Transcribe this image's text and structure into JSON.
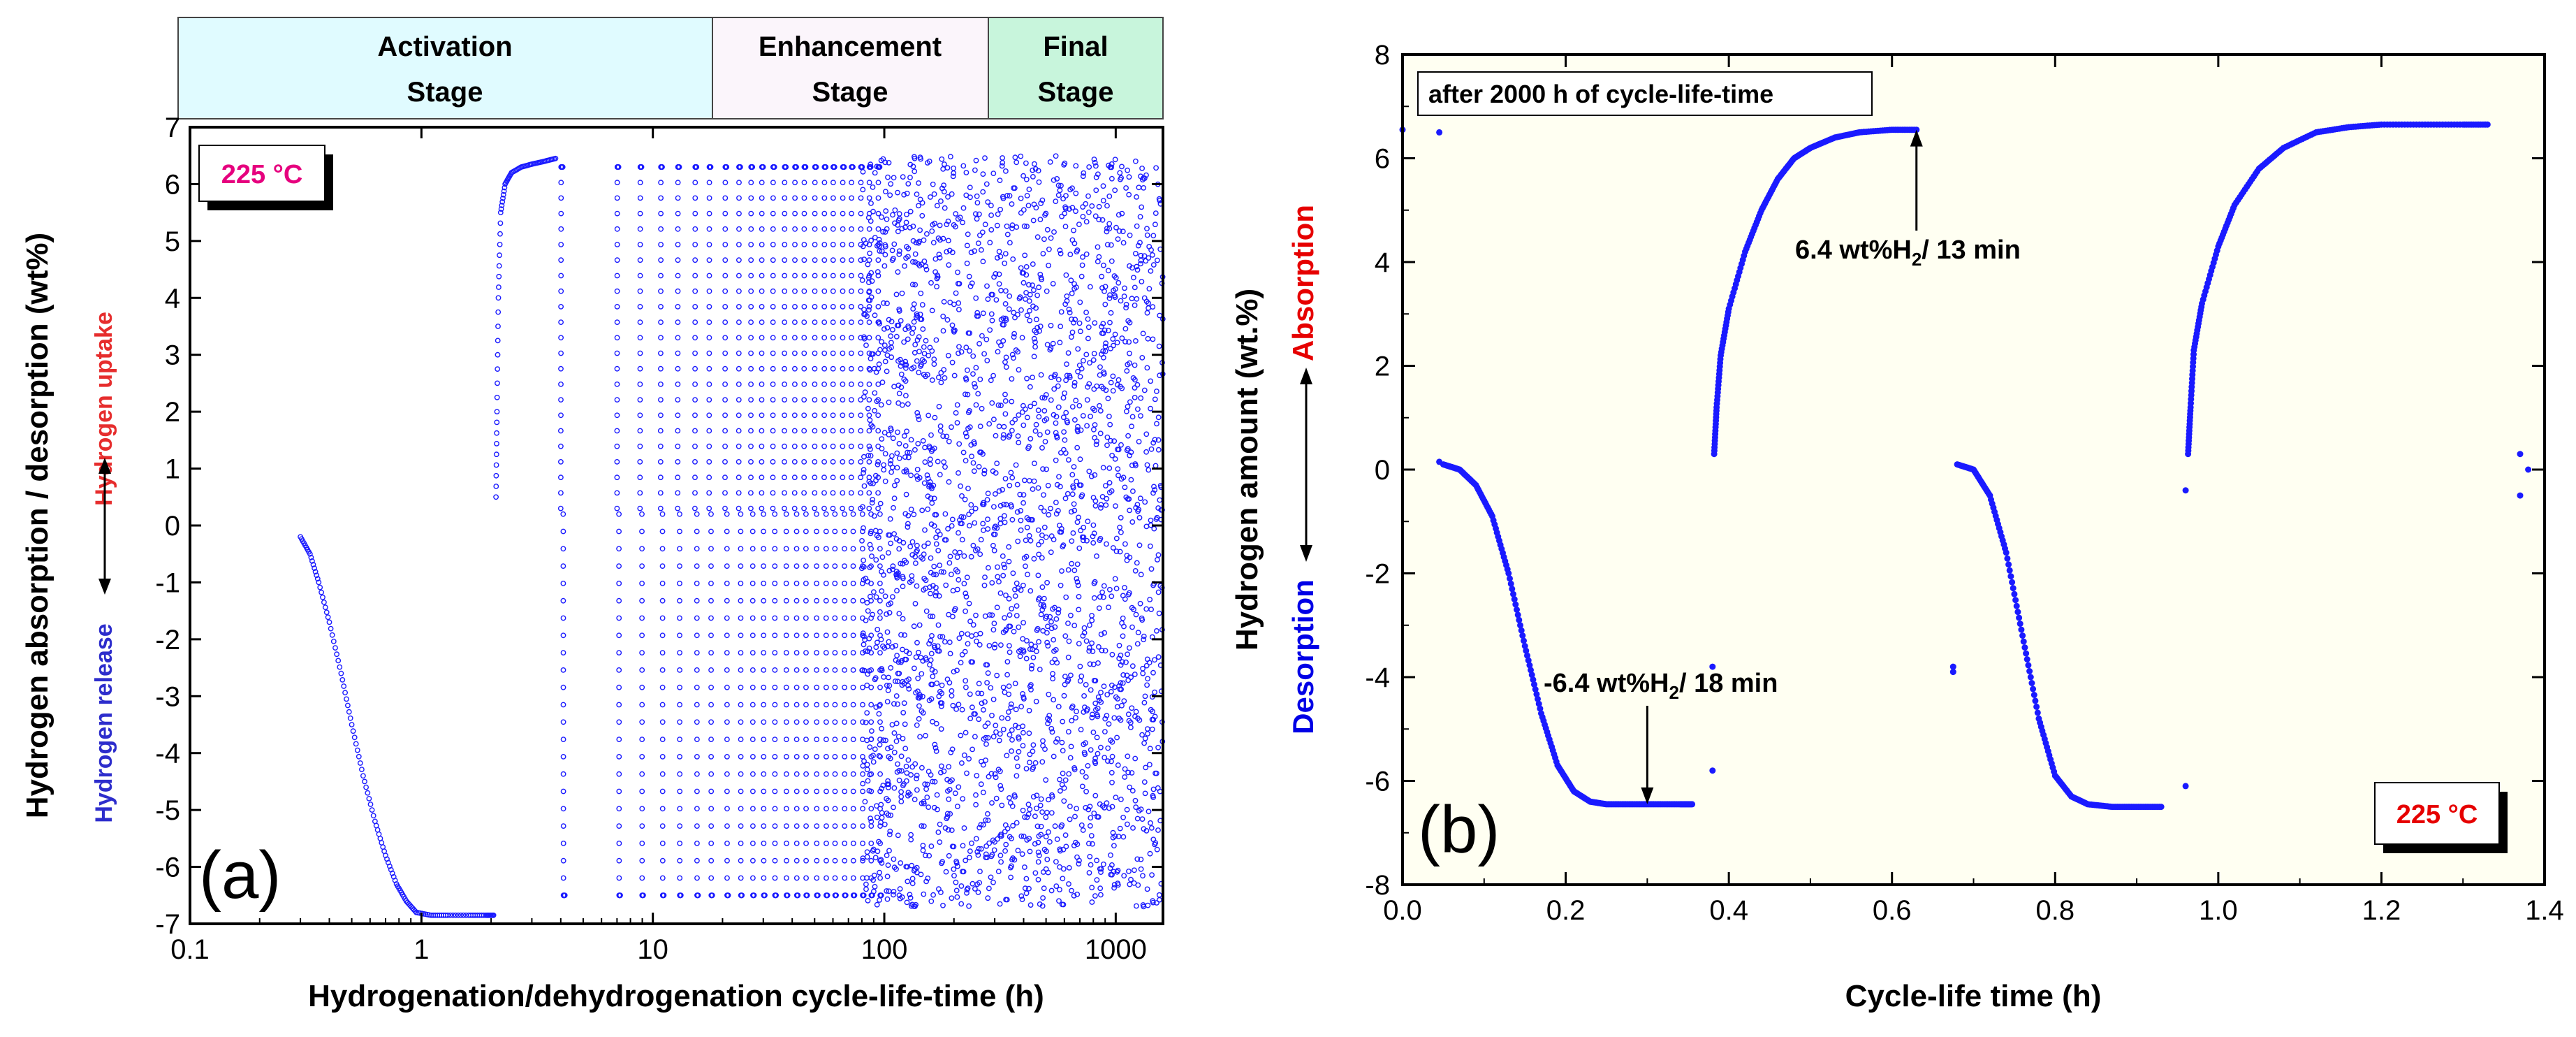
{
  "colors": {
    "series": "#1a1aff",
    "activation_bg": "#e0fbff",
    "enhancement_bg": "#fbf5fb",
    "final_bg": "#c8f5dc",
    "plot_b_bg": "#fffff2",
    "temp_a": "#e6007e",
    "temp_b": "#e60000",
    "absorption_label": "#e60000",
    "desorption_label": "#0000e6",
    "uptake_label": "#e62d2d",
    "release_label": "#2d2dcc"
  },
  "chart_data": [
    {
      "id": "a",
      "type": "scatter",
      "panel_label": "(a)",
      "xlabel": "Hydrogenation/dehydrogenation cycle-life-time (h)",
      "ylabel": "Hydrogen absorption / desorption (wt%)",
      "xscale": "log",
      "xlim": [
        0.1,
        1600
      ],
      "ylim": [
        -7,
        7
      ],
      "xticks": [
        0.1,
        1,
        10,
        100,
        1000
      ],
      "xtick_labels": [
        "0.1",
        "1",
        "10",
        "100",
        "1000"
      ],
      "yticks": [
        -7,
        -6,
        -5,
        -4,
        -3,
        -2,
        -1,
        0,
        1,
        2,
        3,
        4,
        5,
        6,
        7
      ],
      "ytick_labels": [
        "-7",
        "-6",
        "-5",
        "-4",
        "-3",
        "-2",
        "-1",
        "0",
        "1",
        "2",
        "3",
        "4",
        "5",
        "6",
        "7"
      ],
      "temperature_label": "225 °C",
      "side_labels": {
        "uptake": "Hydrogen uptake",
        "release": "Hydrogen release"
      },
      "stages": [
        {
          "name": "Activation",
          "line2": "Stage",
          "x_start": 0.1,
          "x_end": 18
        },
        {
          "name": "Enhancement",
          "line2": "Stage",
          "x_start": 18,
          "x_end": 300
        },
        {
          "name": "Final",
          "line2": "Stage",
          "x_start": 300,
          "x_end": 1600
        }
      ],
      "series": [
        {
          "name": "first desorption",
          "x": [
            0.3,
            0.33,
            0.36,
            0.4,
            0.45,
            0.5,
            0.56,
            0.63,
            0.7,
            0.78,
            0.86,
            0.95,
            1.1,
            1.3,
            1.6,
            1.9,
            2.05
          ],
          "y": [
            -0.2,
            -0.5,
            -1.0,
            -1.7,
            -2.6,
            -3.5,
            -4.4,
            -5.2,
            -5.8,
            -6.3,
            -6.6,
            -6.8,
            -6.85,
            -6.85,
            -6.85,
            -6.85,
            -6.85
          ]
        },
        {
          "name": "first absorption",
          "x": [
            2.1,
            2.12,
            2.15,
            2.2,
            2.3,
            2.45,
            2.7,
            3.0,
            3.4,
            3.8
          ],
          "y": [
            0.5,
            2.0,
            4.0,
            5.5,
            6.0,
            6.2,
            6.3,
            6.35,
            6.4,
            6.45
          ]
        },
        {
          "name": "cyclic cycles",
          "cycle_starts_h": [
            4.0,
            7.0,
            8.8,
            10.8,
            12.8,
            15.2,
            17.5,
            20.5,
            23.5,
            26.5,
            29.5,
            33,
            37,
            41,
            45,
            50,
            55,
            60,
            66,
            72,
            79,
            86,
            94
          ],
          "absorption_max_wt": 6.3,
          "desorption_min_wt": -6.5,
          "dense_band_from_h": 80,
          "dense_band_to_h": 1600,
          "dense_band_y": [
            -6.7,
            6.5
          ]
        }
      ]
    },
    {
      "id": "b",
      "type": "scatter",
      "panel_label": "(b)",
      "xlabel": "Cycle-life time (h)",
      "ylabel": "Hydrogen amount (wt.%)",
      "ylabel_absorption": "Absorption",
      "ylabel_desorption": "Desorption",
      "xlim": [
        0,
        1.4
      ],
      "ylim": [
        -8,
        8
      ],
      "xticks": [
        0.0,
        0.2,
        0.4,
        0.6,
        0.8,
        1.0,
        1.2,
        1.4
      ],
      "xtick_labels": [
        "0.0",
        "0.2",
        "0.4",
        "0.6",
        "0.8",
        "1.0",
        "1.2",
        "1.4"
      ],
      "yticks": [
        -8,
        -6,
        -4,
        -2,
        0,
        2,
        4,
        6,
        8
      ],
      "ytick_labels": [
        "-8",
        "-6",
        "-4",
        "-2",
        "0",
        "2",
        "4",
        "6",
        "8"
      ],
      "title_box": "after 2000 h of cycle-life-time",
      "temperature_label": "225 °C",
      "annotations": [
        {
          "text": "6.4 wt%H2/ 13 min",
          "main": "6.4 wt%H",
          "sub": "2",
          "rest": "/ 13 min",
          "target_x": 0.63,
          "target_y": 6.55
        },
        {
          "text": "-6.4 wt%H2/ 18 min",
          "main": "-6.4 wt%H",
          "sub": "2",
          "rest": "/ 18 min",
          "target_x": 0.3,
          "target_y": -6.45
        }
      ],
      "series": [
        {
          "name": "stray points",
          "x": [
            0.0,
            0.045,
            0.045,
            0.38,
            0.38,
            0.675,
            0.675,
            0.96,
            0.96,
            1.37,
            1.37,
            1.38
          ],
          "y": [
            6.55,
            6.5,
            0.15,
            -3.8,
            -5.8,
            -3.8,
            -3.9,
            -6.1,
            -0.4,
            0.3,
            -0.5,
            0.0
          ]
        },
        {
          "name": "desorption 1",
          "x": [
            0.05,
            0.07,
            0.09,
            0.11,
            0.13,
            0.15,
            0.17,
            0.19,
            0.21,
            0.23,
            0.25,
            0.28,
            0.31,
            0.34,
            0.355
          ],
          "y": [
            0.1,
            0.0,
            -0.3,
            -0.9,
            -2.0,
            -3.4,
            -4.7,
            -5.7,
            -6.2,
            -6.4,
            -6.45,
            -6.45,
            -6.45,
            -6.45,
            -6.45
          ]
        },
        {
          "name": "absorption 1",
          "x": [
            0.382,
            0.385,
            0.39,
            0.4,
            0.42,
            0.44,
            0.46,
            0.48,
            0.5,
            0.53,
            0.56,
            0.6,
            0.63
          ],
          "y": [
            0.3,
            1.2,
            2.2,
            3.1,
            4.2,
            5.0,
            5.6,
            6.0,
            6.2,
            6.4,
            6.5,
            6.55,
            6.55
          ]
        },
        {
          "name": "desorption 2",
          "x": [
            0.68,
            0.7,
            0.72,
            0.74,
            0.76,
            0.78,
            0.8,
            0.82,
            0.84,
            0.87,
            0.9,
            0.93
          ],
          "y": [
            0.1,
            0.0,
            -0.5,
            -1.6,
            -3.2,
            -4.8,
            -5.9,
            -6.3,
            -6.45,
            -6.5,
            -6.5,
            -6.5
          ]
        },
        {
          "name": "absorption 2",
          "x": [
            0.963,
            0.966,
            0.97,
            0.98,
            1.0,
            1.02,
            1.05,
            1.08,
            1.12,
            1.16,
            1.2,
            1.25,
            1.3,
            1.33
          ],
          "y": [
            0.3,
            1.2,
            2.3,
            3.2,
            4.3,
            5.1,
            5.8,
            6.2,
            6.5,
            6.6,
            6.65,
            6.65,
            6.65,
            6.65
          ]
        }
      ]
    }
  ]
}
